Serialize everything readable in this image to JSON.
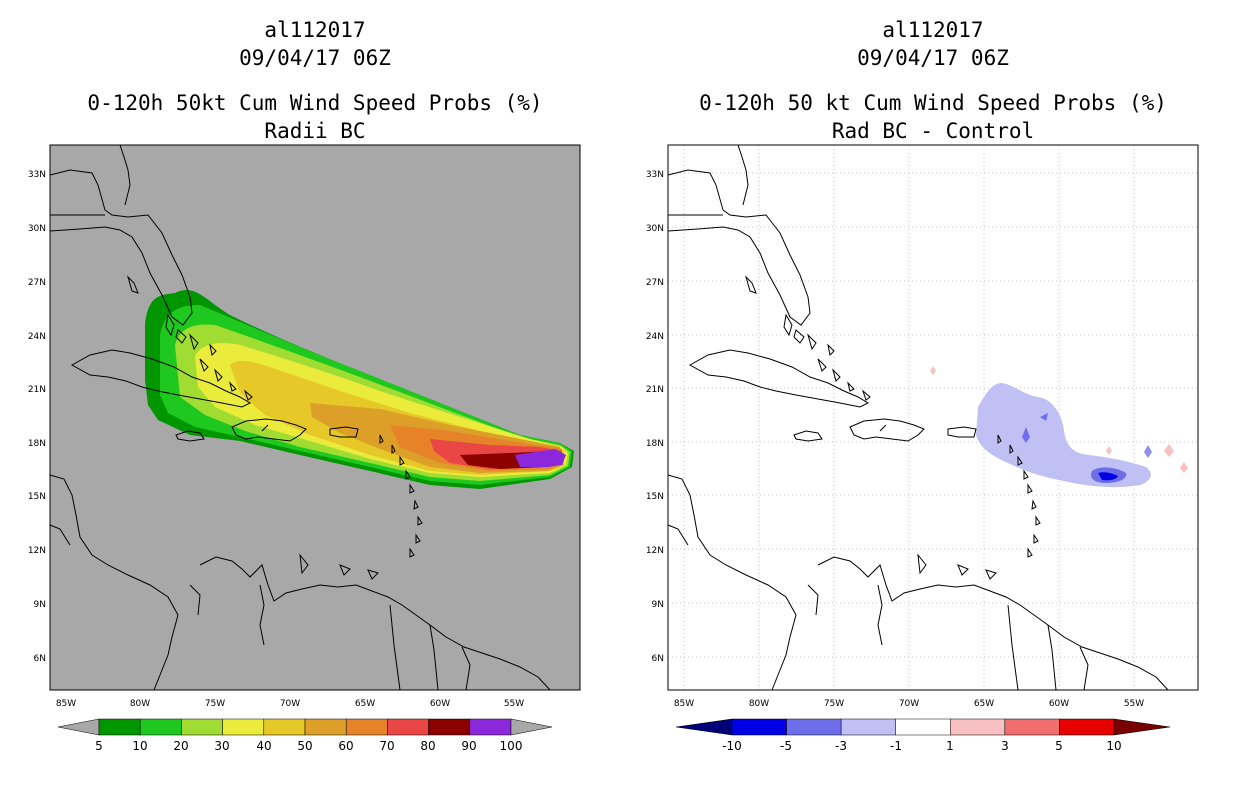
{
  "left_panel": {
    "title_id": "al112017",
    "title_time": "09/04/17 06Z",
    "title_product": "0-120h 50kt Cum Wind Speed Probs (%)",
    "title_sub": "Radii BC",
    "lat_labels": [
      "33N",
      "30N",
      "27N",
      "24N",
      "21N",
      "18N",
      "15N",
      "12N",
      "9N",
      "6N"
    ],
    "lon_labels": [
      "85W",
      "80W",
      "75W",
      "70W",
      "65W",
      "60W",
      "55W"
    ],
    "colorbar": {
      "labels": [
        "5",
        "10",
        "20",
        "30",
        "40",
        "50",
        "60",
        "70",
        "80",
        "90",
        "100"
      ],
      "colors": [
        "#009600",
        "#1ec81e",
        "#a0dc32",
        "#ebeb3c",
        "#e6c828",
        "#dca028",
        "#e68228",
        "#eb4646",
        "#8c0000",
        "#8c28dc"
      ]
    },
    "background_color": "#a8a8a8"
  },
  "right_panel": {
    "title_id": "al112017",
    "title_time": "09/04/17 06Z",
    "title_product": "0-120h 50 kt Cum Wind Speed Probs (%)",
    "title_sub": "Rad BC - Control",
    "lat_labels": [
      "33N",
      "30N",
      "27N",
      "24N",
      "21N",
      "18N",
      "15N",
      "12N",
      "9N",
      "6N"
    ],
    "lon_labels": [
      "85W",
      "80W",
      "75W",
      "70W",
      "65W",
      "60W",
      "55W"
    ],
    "colorbar": {
      "labels": [
        "-10",
        "-5",
        "-3",
        "-1",
        "1",
        "3",
        "5",
        "10"
      ],
      "colors": [
        "#0000e6",
        "#6e6eeb",
        "#c0c0f4",
        "#ffffff",
        "#f8c0c0",
        "#f06e6e",
        "#e60000"
      ]
    }
  }
}
